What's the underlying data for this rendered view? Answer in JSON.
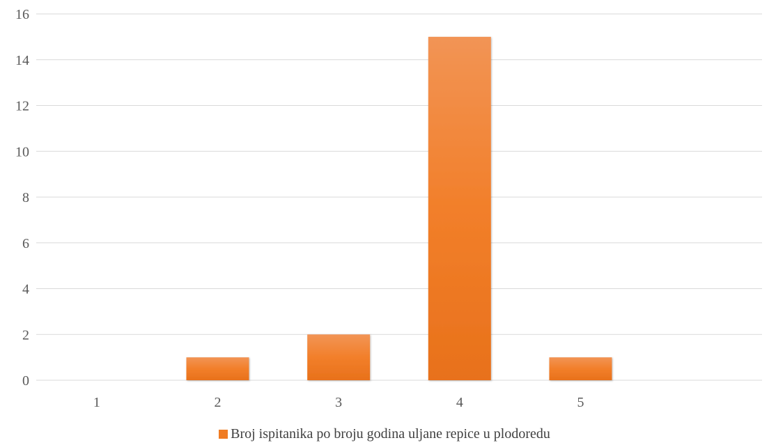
{
  "chart_data": {
    "type": "bar",
    "categories": [
      "1",
      "2",
      "3",
      "4",
      "5"
    ],
    "series": [
      {
        "name": "Broj ispitanika po broju godina uljane repice u plodoredu",
        "values": [
          0,
          1,
          2,
          15,
          1
        ],
        "color": "#F07C23"
      }
    ],
    "ylim": [
      0,
      16
    ],
    "yticks": [
      "0",
      "2",
      "4",
      "6",
      "8",
      "10",
      "12",
      "14",
      "16"
    ],
    "grid": true,
    "legend_position": "bottom"
  }
}
